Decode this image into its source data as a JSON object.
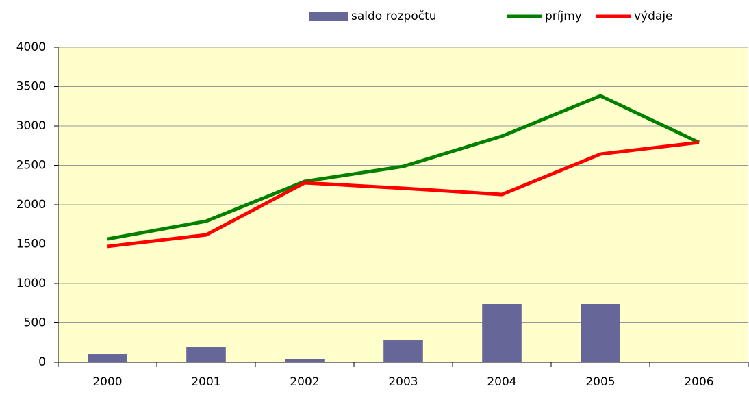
{
  "chart_data": {
    "type": "bar",
    "categories": [
      "2000",
      "2001",
      "2002",
      "2003",
      "2004",
      "2005",
      "2006"
    ],
    "series": [
      {
        "name": "saldo rozpočtu",
        "type": "bar",
        "color": "#666699",
        "values": [
          104,
          191,
          35,
          278,
          739,
          739,
          0
        ]
      },
      {
        "name": "príjmy",
        "type": "line",
        "color": "#008000",
        "values": [
          1565,
          1791,
          2296,
          2487,
          2870,
          3383,
          2791
        ]
      },
      {
        "name": "výdaje",
        "type": "line",
        "color": "#ff0000",
        "values": [
          1470,
          1617,
          2278,
          2209,
          2130,
          2643,
          2791
        ]
      }
    ],
    "ylim": [
      0,
      4000
    ],
    "yticks": [
      0,
      500,
      1000,
      1500,
      2000,
      2500,
      3000,
      3500,
      4000
    ],
    "grid": true,
    "legend": "top"
  }
}
